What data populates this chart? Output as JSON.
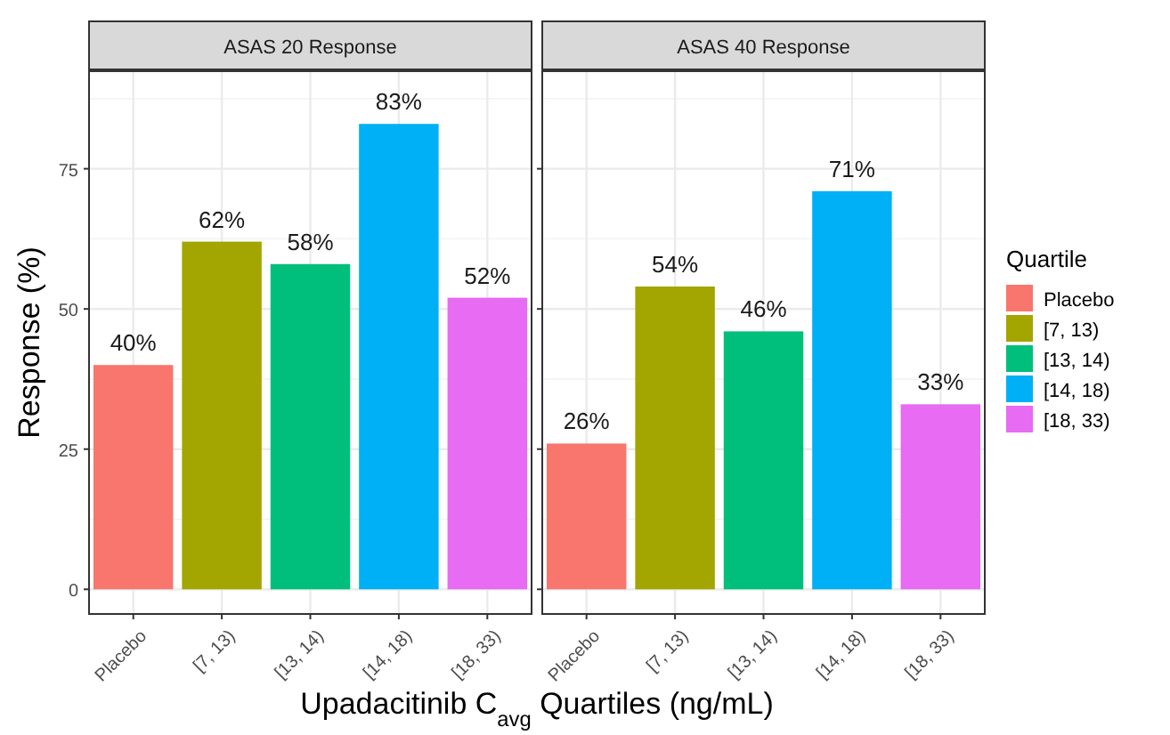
{
  "chart_data": [
    {
      "type": "bar",
      "title": "ASAS 20 Response",
      "xlabel": "Upadacitinib C$_{avg}$ Quartiles (ng/mL)",
      "ylabel": "Response (%)",
      "categories": [
        "Placebo",
        "[7, 13)",
        "[13, 14)",
        "[14, 18)",
        "[18, 33)"
      ],
      "stacked": true,
      "series": [
        {
          "color": "#f8766d",
          "values": [
            40,
            null,
            null,
            null,
            null
          ],
          "value_labels": [
            "40%",
            null,
            null,
            null,
            null
          ]
        },
        {
          "color": "#a3a500",
          "values": [
            null,
            62,
            null,
            null,
            null
          ],
          "value_labels": [
            null,
            "62%",
            null,
            null,
            null
          ]
        },
        {
          "color": "#00bf7d",
          "values": [
            null,
            null,
            58,
            null,
            null
          ],
          "value_labels": [
            null,
            null,
            "58%",
            null,
            null
          ]
        },
        {
          "color": "#00b0f6",
          "values": [
            null,
            null,
            null,
            83,
            null
          ],
          "value_labels": [
            null,
            null,
            null,
            "83%",
            null
          ]
        },
        {
          "color": "#e76bf3",
          "values": [
            null,
            null,
            null,
            null,
            52
          ],
          "value_labels": [
            null,
            null,
            null,
            null,
            "52%"
          ]
        }
      ],
      "ylim": [
        -4.4,
        92.4
      ],
      "yticks": [
        0,
        25,
        50,
        75
      ],
      "grid": true
    },
    {
      "type": "bar",
      "title": "ASAS 40 Response",
      "categories": [
        "Placebo",
        "[7, 13)",
        "[13, 14)",
        "[14, 18)",
        "[18, 33)"
      ],
      "stacked": true,
      "series": [
        {
          "name": "Placebo",
          "color": "#f8766d",
          "values": [
            26,
            null,
            null,
            null,
            null
          ],
          "value_labels": [
            "26%",
            null,
            null,
            null,
            null
          ]
        },
        {
          "name": "[7, 13)",
          "color": "#a3a500",
          "values": [
            null,
            54,
            null,
            null,
            null
          ],
          "value_labels": [
            null,
            "54%",
            null,
            null,
            null
          ]
        },
        {
          "name": "[13, 14)",
          "color": "#00bf7d",
          "values": [
            null,
            null,
            46,
            null,
            null
          ],
          "value_labels": [
            null,
            null,
            "46%",
            null,
            null
          ]
        },
        {
          "name": "[14, 18)",
          "color": "#00b0f6",
          "values": [
            null,
            null,
            null,
            71,
            null
          ],
          "value_labels": [
            null,
            null,
            null,
            "71%",
            null
          ]
        },
        {
          "name": "[18, 33)",
          "color": "#e76bf3",
          "values": [
            null,
            null,
            null,
            null,
            33
          ],
          "value_labels": [
            null,
            null,
            null,
            null,
            "33%"
          ]
        }
      ],
      "ylim": [
        -4.4,
        92.4
      ],
      "yticks": [
        0,
        25,
        50,
        75
      ],
      "grid": true,
      "tick_labels": "x",
      "legend": "right",
      "legend_title": "Quartile"
    }
  ]
}
